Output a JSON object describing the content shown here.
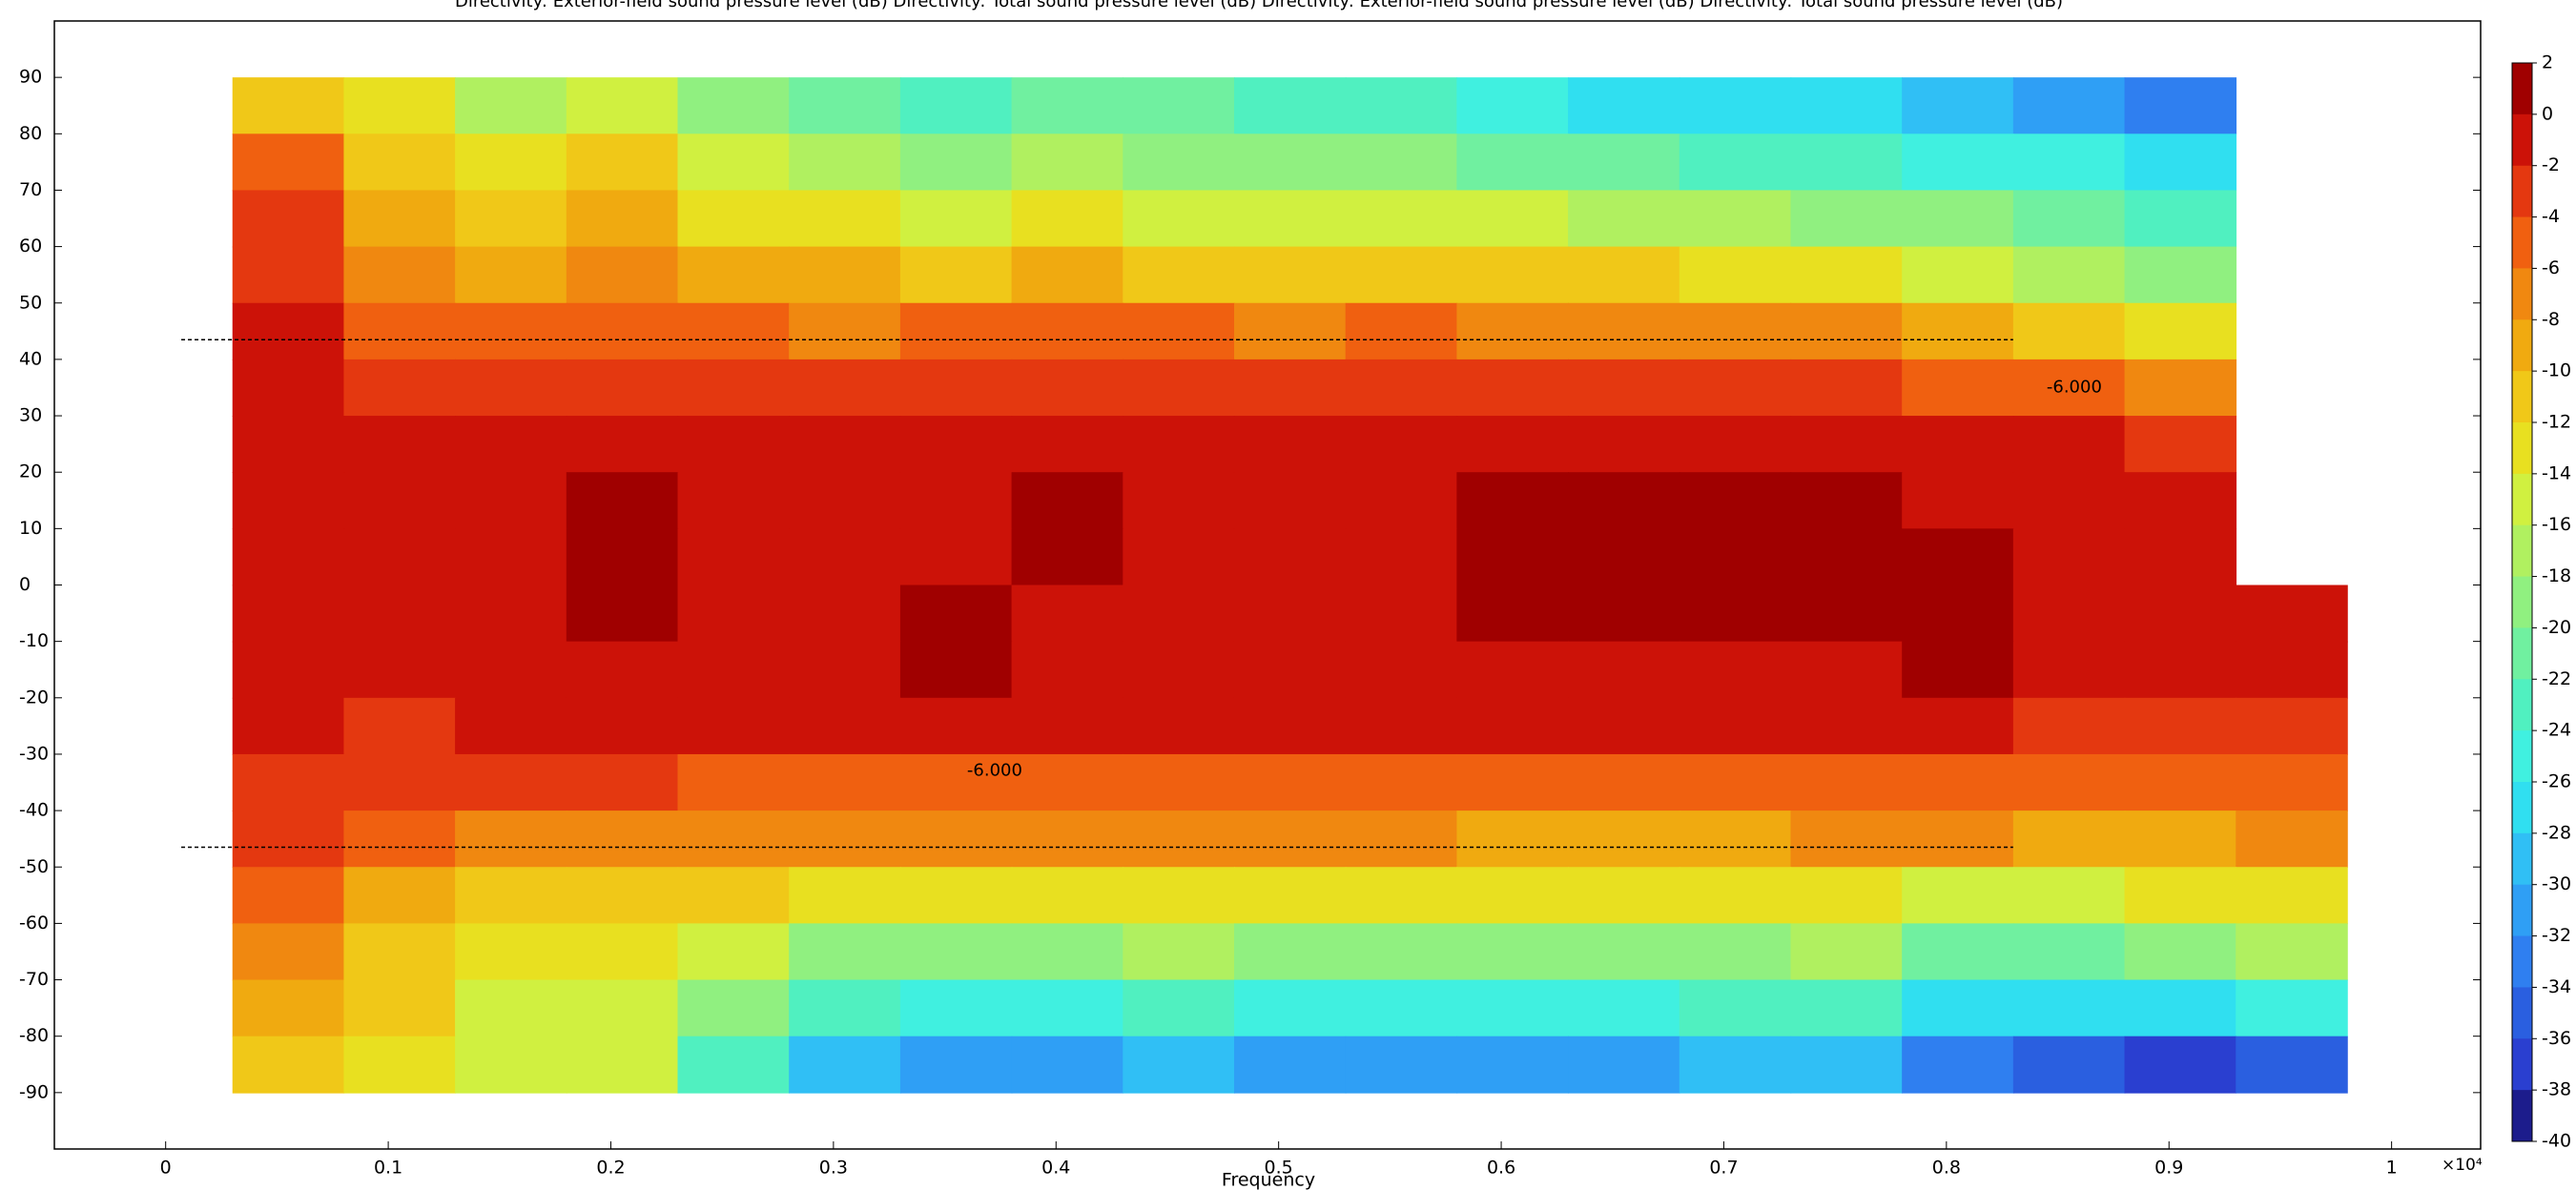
{
  "chart_data": {
    "type": "contour",
    "title": "Directivity: Exterior-field sound pressure level (dB)  Directivity: Total sound pressure level (dB)  Directivity: Exterior-field sound pressure level (dB)  Directivity: Total sound pressure level (dB)",
    "xlabel": "Frequency",
    "x_multiplier": "×10⁴",
    "xlim": [
      -0.05,
      1.04
    ],
    "ylim": [
      -100,
      100
    ],
    "xticks": [
      0,
      0.1,
      0.2,
      0.3,
      0.4,
      0.5,
      0.6,
      0.7,
      0.8,
      0.9,
      1
    ],
    "yticks": [
      90,
      80,
      70,
      60,
      50,
      40,
      30,
      20,
      10,
      0,
      -10,
      -20,
      -30,
      -40,
      -50,
      -60,
      -70,
      -80,
      -90
    ],
    "x": [
      0.055,
      0.105,
      0.155,
      0.205,
      0.255,
      0.305,
      0.355,
      0.405,
      0.455,
      0.505,
      0.555,
      0.605,
      0.655,
      0.705,
      0.755,
      0.805,
      0.855,
      0.905,
      0.955
    ],
    "y": [
      85,
      75,
      65,
      55,
      45,
      35,
      25,
      15,
      5,
      -5,
      -15,
      -25,
      -35,
      -45,
      -55,
      -65,
      -75,
      -85
    ],
    "z": [
      [
        -12,
        -14,
        -17,
        -16,
        -20,
        -22,
        -23,
        -22,
        -22,
        -24,
        -24,
        -26,
        -27,
        -28,
        -28,
        -30,
        -32,
        -34,
        null
      ],
      [
        -6,
        -12,
        -14,
        -12,
        -16,
        -18,
        -19,
        -18,
        -19,
        -20,
        -20,
        -21,
        -22,
        -23,
        -24,
        -25,
        -26,
        -28,
        null
      ],
      [
        -4,
        -10,
        -12,
        -10,
        -13,
        -14,
        -15,
        -14,
        -15,
        -16,
        -15,
        -16,
        -17,
        -18,
        -19,
        -20,
        -22,
        -24,
        null
      ],
      [
        -3,
        -8,
        -10,
        -8,
        -9,
        -10,
        -11,
        -10,
        -11,
        -12,
        -11,
        -12,
        -12,
        -13,
        -14,
        -15,
        -17,
        -19,
        null
      ],
      [
        -2,
        -6,
        -6,
        -5,
        -6,
        -7,
        -6,
        -6,
        -6,
        -7,
        -6,
        -7,
        -7,
        -8,
        -8,
        -9,
        -11,
        -13,
        null
      ],
      [
        -1,
        -4,
        -3,
        -3,
        -4,
        -4,
        -3,
        -3,
        -3,
        -4,
        -3,
        -4,
        -4,
        -4,
        -4,
        -5,
        -6,
        -7,
        null
      ],
      [
        -1,
        -2,
        -2,
        -1,
        -2,
        -2,
        -2,
        -2,
        -2,
        -2,
        -1,
        -1,
        -1,
        -1,
        -1,
        -2,
        -2,
        -3,
        null
      ],
      [
        -1,
        -2,
        -2,
        0,
        -1,
        -2,
        -1,
        0,
        -1,
        -1,
        -1,
        0,
        0,
        0,
        0,
        -1,
        -1,
        -2,
        null
      ],
      [
        -1,
        -1,
        -1,
        0,
        -1,
        -1,
        -1,
        0,
        -1,
        -1,
        -1,
        0,
        0,
        0,
        0,
        0,
        -1,
        -1,
        null
      ],
      [
        -1,
        -1,
        -1,
        0,
        -1,
        -1,
        0,
        -1,
        -1,
        -1,
        -1,
        0,
        0,
        0,
        0,
        0,
        -1,
        -1,
        -1
      ],
      [
        -1,
        -2,
        -1,
        -1,
        -1,
        -1,
        0,
        -1,
        -1,
        -1,
        -1,
        -1,
        -1,
        -1,
        -1,
        0,
        -1,
        -1,
        -1
      ],
      [
        -2,
        -3,
        -2,
        -2,
        -2,
        -2,
        -2,
        -2,
        -2,
        -2,
        -2,
        -2,
        -2,
        -2,
        -2,
        -2,
        -3,
        -3,
        -3
      ],
      [
        -3,
        -4,
        -4,
        -4,
        -5,
        -5,
        -5,
        -5,
        -5,
        -5,
        -5,
        -5,
        -6,
        -5,
        -5,
        -5,
        -6,
        -6,
        -5
      ],
      [
        -4,
        -6,
        -8,
        -7,
        -8,
        -8,
        -8,
        -8,
        -8,
        -8,
        -8,
        -9,
        -9,
        -9,
        -8,
        -8,
        -10,
        -9,
        -8
      ],
      [
        -6,
        -10,
        -12,
        -11,
        -12,
        -13,
        -13,
        -13,
        -13,
        -13,
        -13,
        -14,
        -14,
        -14,
        -13,
        -15,
        -16,
        -14,
        -13
      ],
      [
        -8,
        -12,
        -14,
        -14,
        -16,
        -19,
        -19,
        -19,
        -18,
        -19,
        -20,
        -20,
        -20,
        -19,
        -18,
        -22,
        -22,
        -20,
        -18
      ],
      [
        -10,
        -12,
        -16,
        -16,
        -20,
        -24,
        -25,
        -25,
        -24,
        -25,
        -26,
        -26,
        -25,
        -24,
        -23,
        -28,
        -28,
        -28,
        -26
      ],
      [
        -12,
        -13,
        -16,
        -16,
        -24,
        -30,
        -32,
        -32,
        -30,
        -32,
        -32,
        -32,
        -32,
        -30,
        -30,
        -34,
        -36,
        -38,
        -36
      ]
    ],
    "colorbar": {
      "ticks": [
        2,
        0,
        -2,
        -4,
        -6,
        -8,
        -10,
        -12,
        -14,
        -16,
        -18,
        -20,
        -22,
        -24,
        -26,
        -28,
        -30,
        -32,
        -34,
        -36,
        -38,
        -40
      ],
      "colors": [
        "#a00000",
        "#cc1208",
        "#e43810",
        "#f06010",
        "#f08810",
        "#f0aa10",
        "#f0c818",
        "#e8e020",
        "#d0f040",
        "#b0f060",
        "#90f080",
        "#70f0a0",
        "#50f0c0",
        "#40f0e0",
        "#30dff0",
        "#30bff5",
        "#2f9ff5",
        "#2f7ff0",
        "#2a5fe0",
        "#2a3fd0",
        "#1c1c8c"
      ]
    },
    "reference_lines": [
      {
        "y": 43.5,
        "x": [
          0.007,
          0.83
        ]
      },
      {
        "y": -46.5,
        "x": [
          0.007,
          0.83
        ]
      }
    ],
    "contour_labels": [
      {
        "text": "-6.000",
        "x": 0.845,
        "y": 35
      },
      {
        "text": "-6.000",
        "x": 0.36,
        "y": -33
      }
    ]
  }
}
